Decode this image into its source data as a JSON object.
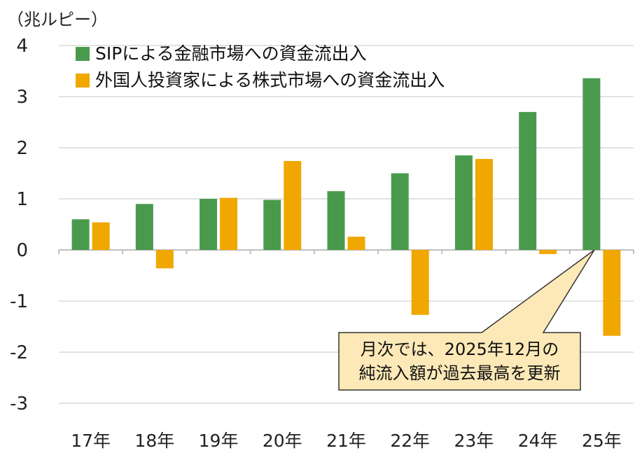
{
  "chart_data": {
    "type": "bar",
    "ylabel": "（兆ルピー）",
    "ylim": [
      -3,
      4
    ],
    "yticks": [
      4,
      3,
      2,
      1,
      0,
      -1,
      -2,
      -3
    ],
    "grid": true,
    "legend_position": "top-left",
    "categories": [
      "17年",
      "18年",
      "19年",
      "20年",
      "21年",
      "22年",
      "23年",
      "24年",
      "25年"
    ],
    "series": [
      {
        "name": "SIPによる金融市場への資金流出入",
        "color": "#4a9a4e",
        "values": [
          0.6,
          0.9,
          1.0,
          0.98,
          1.15,
          1.5,
          1.85,
          2.7,
          3.36
        ]
      },
      {
        "name": "外国人投資家による株式市場への資金流出入",
        "color": "#f0a700",
        "values": [
          0.54,
          -0.36,
          1.02,
          1.74,
          0.26,
          -1.27,
          1.78,
          -0.08,
          -1.68
        ]
      }
    ],
    "annotation": {
      "line1": "月次では、2025年12月の",
      "line2": "純流入額が過去最高を更新",
      "points_to": {
        "category": "25年",
        "series": 0,
        "value": 0
      }
    }
  }
}
